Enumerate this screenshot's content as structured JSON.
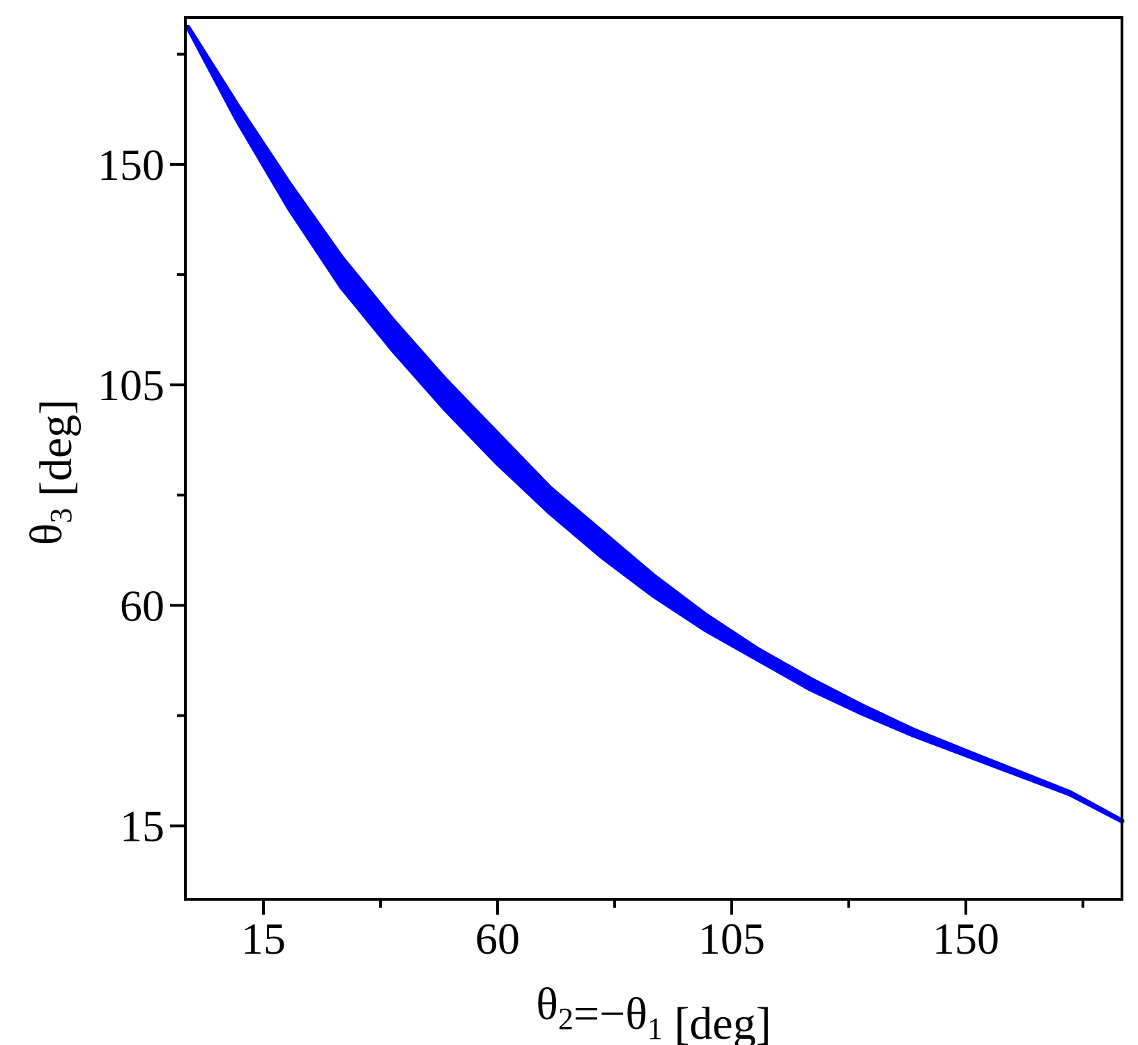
{
  "chart_data": {
    "type": "area",
    "title": "",
    "xlabel": {
      "parts": [
        {
          "text": "θ",
          "sub": false
        },
        {
          "text": "2",
          "sub": true
        },
        {
          "text": "=−θ",
          "sub": false
        },
        {
          "text": "1",
          "sub": true
        },
        {
          "text": " [deg]",
          "sub": false
        }
      ]
    },
    "ylabel": {
      "parts": [
        {
          "text": "θ",
          "sub": false
        },
        {
          "text": "3",
          "sub": true
        },
        {
          "text": " [deg]",
          "sub": false
        }
      ]
    },
    "xlim": [
      0,
      180
    ],
    "ylim": [
      0,
      180
    ],
    "x_ticks_major": [
      15,
      60,
      105,
      150
    ],
    "x_ticks_minor": [
      37.5,
      82.5,
      127.5,
      172.5
    ],
    "y_ticks_major": [
      15,
      60,
      105,
      150
    ],
    "y_ticks_minor": [
      37.5,
      82.5,
      127.5,
      172.5
    ],
    "grid": false,
    "legend": "none",
    "series_color": "#0000ff",
    "x": [
      0.5,
      10,
      20,
      30,
      40,
      50,
      60,
      70,
      80,
      90,
      100,
      110,
      120,
      130,
      140,
      150,
      160,
      170,
      180
    ],
    "y_lower": [
      178,
      159,
      141,
      125,
      112,
      100,
      89,
      79,
      70,
      62,
      55,
      49,
      43,
      38,
      33.5,
      29.5,
      25.5,
      21.5,
      16
    ],
    "y_upper": [
      178,
      162,
      146,
      131,
      118,
      106,
      95,
      84,
      75,
      66,
      58,
      51,
      45,
      39.5,
      34.5,
      30.2,
      26,
      21.8,
      16
    ]
  }
}
